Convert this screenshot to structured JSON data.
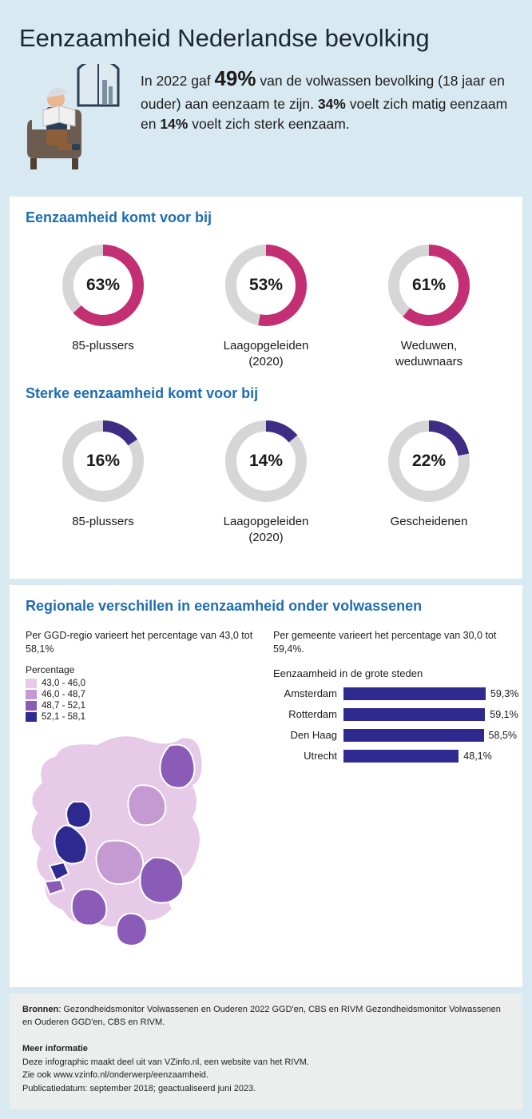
{
  "page": {
    "title": "Eenzaamheid Nederlandse bevolking",
    "background_color": "#d9e9f2",
    "card_bg": "#ffffff",
    "heading_color": "#1e6db3"
  },
  "intro": {
    "line1_pre": "In 2022 gaf ",
    "pct_big": "49%",
    "line1_post": " van de volwassen bevolking (18 jaar en ouder) aan eenzaam te zijn. ",
    "pct2": "34%",
    "mid2": " voelt zich matig eenzaam en ",
    "pct3": "14%",
    "end": " voelt zich sterk eenzaam."
  },
  "donuts": {
    "track_color": "#d6d6d6",
    "stroke_width": 14,
    "radius": 44,
    "section1": {
      "title": "Eenzaamheid komt voor bij",
      "fill_color": "#c42e72",
      "items": [
        {
          "value": 63,
          "label1": "85-plussers",
          "label2": ""
        },
        {
          "value": 53,
          "label1": "Laagopgeleiden",
          "label2": "(2020)"
        },
        {
          "value": 61,
          "label1": "Weduwen,",
          "label2": "weduwnaars"
        }
      ]
    },
    "section2": {
      "title": "Sterke eenzaamheid komt voor bij",
      "fill_color": "#3f2c85",
      "items": [
        {
          "value": 16,
          "label1": "85-plussers",
          "label2": ""
        },
        {
          "value": 14,
          "label1": "Laagopgeleiden",
          "label2": "(2020)"
        },
        {
          "value": 22,
          "label1": "Gescheidenen",
          "label2": ""
        }
      ]
    }
  },
  "regional": {
    "title": "Regionale verschillen in eenzaamheid onder volwassenen",
    "left_note": "Per GGD-regio varieert het percentage van 43,0 tot 58,1%",
    "legend_title": "Percentage",
    "legend": [
      {
        "color": "#e7c9e8",
        "label": "43,0 - 46,0"
      },
      {
        "color": "#c59ad2",
        "label": "46,0 - 48,7"
      },
      {
        "color": "#8a5cb8",
        "label": "48,7 - 52,1"
      },
      {
        "color": "#2e2a8f",
        "label": "52,1 - 58,1"
      }
    ],
    "right_note": "Per gemeente varieert het percentage van 30,0 tot 59,4%.",
    "bars_title": "Eenzaamheid in de grote steden",
    "bar_color": "#2e2a8f",
    "bar_max": 60,
    "bar_track_width": 180,
    "bars": [
      {
        "label": "Amsterdam",
        "value": 59.3,
        "display": "59,3%"
      },
      {
        "label": "Rotterdam",
        "value": 59.1,
        "display": "59,1%"
      },
      {
        "label": "Den Haag",
        "value": 58.5,
        "display": "58,5%"
      },
      {
        "label": "Utrecht",
        "value": 48.1,
        "display": "48,1%"
      }
    ]
  },
  "footer": {
    "bronnen_label": "Bronnen",
    "bronnen_text": ": Gezondheidsmonitor Volwassenen en Ouderen 2022 GGD'en, CBS en RIVM Gezondheidsmonitor Volwassenen en Ouderen GGD'en, CBS en RIVM.",
    "meer_label": "Meer informatie",
    "meer_line1": "Deze infographic maakt deel uit van VZinfo.nl, een website van het RIVM.",
    "meer_line2": "Zie ook www.vzinfo.nl/onderwerp/eenzaamheid.",
    "meer_line3": "Publicatiedatum: september 2018; geactualiseerd juni 2023."
  },
  "illustration_colors": {
    "window_frame": "#2a3f55",
    "window_sky": "#dfeaf0",
    "building": "#7a8fa0",
    "chair": "#6c5b4f",
    "person_hair": "#d9dbe0",
    "person_skin": "#e9b690",
    "person_shirt": "#2a3f55",
    "person_pants": "#8c5f3a",
    "newspaper": "#f0f0f0"
  }
}
